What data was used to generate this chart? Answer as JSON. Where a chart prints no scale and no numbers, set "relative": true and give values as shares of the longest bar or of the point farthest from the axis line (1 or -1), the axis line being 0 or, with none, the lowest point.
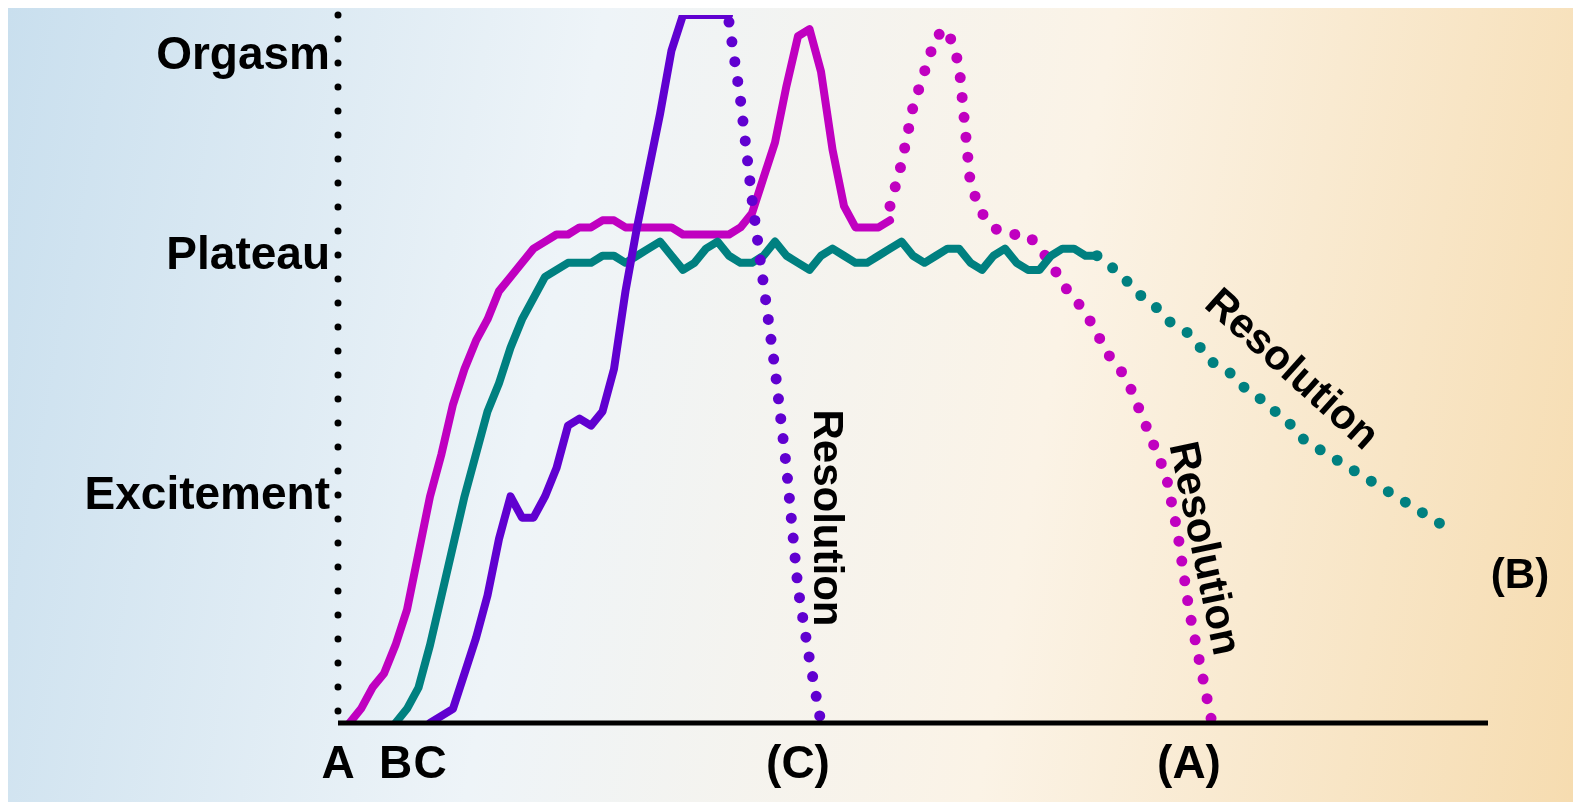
{
  "chart_data": {
    "type": "line",
    "relative": true,
    "grid": false,
    "legend": false,
    "marker": "none",
    "categories": [
      "A",
      null,
      null,
      null,
      null,
      "B",
      null,
      null,
      "C",
      null,
      null,
      null,
      null,
      null,
      null,
      null,
      null,
      null,
      null,
      null,
      null,
      null,
      null,
      null,
      null,
      null,
      null,
      null,
      null,
      null,
      null,
      null,
      null,
      null,
      null,
      null,
      null,
      null,
      null,
      null,
      "(C)",
      null,
      null,
      null,
      null,
      null,
      null,
      null,
      null,
      null,
      null,
      null,
      null,
      null,
      null,
      null,
      null,
      null,
      null,
      null,
      null,
      null,
      null,
      null,
      null,
      null,
      null,
      null,
      null,
      null,
      null,
      null,
      null,
      null,
      "(A)",
      null,
      null,
      null,
      null,
      null,
      null,
      null,
      null,
      null,
      null,
      null,
      null,
      null,
      null,
      null,
      null,
      null,
      null,
      null,
      null,
      null,
      null,
      null,
      null,
      null,
      null
    ],
    "series": [
      {
        "color": "#c000c0",
        "line_style": "solid",
        "values": [
          null,
          0,
          0.02,
          0.05,
          0.07,
          0.11,
          0.16,
          0.24,
          0.32,
          0.38,
          0.45,
          0.5,
          0.54,
          0.57,
          0.61,
          0.63,
          0.65,
          0.67,
          0.68,
          0.69,
          0.69,
          0.7,
          0.7,
          0.71,
          0.71,
          0.7,
          0.7,
          0.7,
          0.7,
          0.7,
          0.69,
          0.69,
          0.69,
          0.69,
          0.69,
          0.7,
          0.72,
          0.77,
          0.82,
          0.9,
          0.97,
          0.98,
          0.92,
          0.81,
          0.73,
          0.7,
          0.7,
          0.7,
          0.71,
          null,
          null,
          null,
          null,
          null,
          null,
          null,
          null,
          null,
          null,
          null,
          null,
          null,
          null,
          null,
          null,
          null,
          null,
          null,
          null,
          null,
          null,
          null,
          null,
          null,
          null,
          null,
          null,
          null,
          null,
          null,
          null,
          null,
          null,
          null,
          null,
          null,
          null,
          null,
          null,
          null,
          null,
          null,
          null,
          null,
          null,
          null,
          null,
          null,
          null,
          null,
          null
        ]
      },
      {
        "color": "#c000c0",
        "line_style": "dotted",
        "values": [
          null,
          null,
          null,
          null,
          null,
          null,
          null,
          null,
          null,
          null,
          null,
          null,
          null,
          null,
          null,
          null,
          null,
          null,
          null,
          null,
          null,
          null,
          null,
          null,
          null,
          null,
          null,
          null,
          null,
          null,
          null,
          null,
          null,
          null,
          null,
          null,
          null,
          null,
          null,
          null,
          null,
          null,
          null,
          null,
          null,
          null,
          null,
          null,
          0.73,
          0.79,
          0.87,
          0.92,
          0.97,
          0.98,
          0.93,
          0.76,
          0.72,
          0.7,
          0.69,
          0.69,
          0.69,
          0.67,
          0.65,
          0.62,
          0.6,
          0.58,
          0.55,
          0.52,
          0.5,
          0.47,
          0.43,
          0.39,
          0.35,
          0.27,
          0.16,
          0.08,
          0,
          null,
          null,
          null,
          null,
          null,
          null,
          null,
          null,
          null,
          null,
          null,
          null,
          null,
          null,
          null,
          null,
          null,
          null,
          null,
          null,
          null,
          null,
          null,
          null
        ]
      },
      {
        "color": "#008080",
        "line_style": "solid",
        "values": [
          null,
          null,
          null,
          null,
          null,
          0,
          0.02,
          0.05,
          0.11,
          0.18,
          0.25,
          0.32,
          0.38,
          0.44,
          0.48,
          0.53,
          0.57,
          0.6,
          0.63,
          0.64,
          0.65,
          0.65,
          0.65,
          0.66,
          0.66,
          0.65,
          0.66,
          0.67,
          0.68,
          0.66,
          0.64,
          0.65,
          0.67,
          0.68,
          0.66,
          0.65,
          0.65,
          0.66,
          0.68,
          0.66,
          0.65,
          0.64,
          0.66,
          0.67,
          0.66,
          0.65,
          0.65,
          0.66,
          0.67,
          0.68,
          0.66,
          0.65,
          0.66,
          0.67,
          0.67,
          0.65,
          0.64,
          0.66,
          0.67,
          0.65,
          0.64,
          0.64,
          0.66,
          0.67,
          0.67,
          0.66,
          0.66,
          null,
          null,
          null,
          null,
          null,
          null,
          null,
          null,
          null,
          null,
          null,
          null,
          null,
          null,
          null,
          null,
          null,
          null,
          null,
          null,
          null,
          null,
          null,
          null,
          null,
          null,
          null,
          null,
          null,
          null,
          null,
          null,
          null,
          null
        ]
      },
      {
        "color": "#008080",
        "line_style": "dotted",
        "values": [
          null,
          null,
          null,
          null,
          null,
          null,
          null,
          null,
          null,
          null,
          null,
          null,
          null,
          null,
          null,
          null,
          null,
          null,
          null,
          null,
          null,
          null,
          null,
          null,
          null,
          null,
          null,
          null,
          null,
          null,
          null,
          null,
          null,
          null,
          null,
          null,
          null,
          null,
          null,
          null,
          null,
          null,
          null,
          null,
          null,
          null,
          null,
          null,
          null,
          null,
          null,
          null,
          null,
          null,
          null,
          null,
          null,
          null,
          null,
          null,
          null,
          null,
          null,
          null,
          null,
          null,
          0.66,
          0.65,
          0.63,
          0.62,
          0.6,
          0.59,
          0.57,
          0.56,
          0.55,
          0.53,
          0.51,
          0.5,
          0.49,
          0.47,
          0.46,
          0.45,
          0.43,
          0.42,
          0.4,
          0.39,
          0.38,
          0.37,
          0.36,
          0.35,
          0.34,
          0.33,
          0.32,
          0.31,
          0.3,
          0.29,
          0.28,
          0.27,
          null,
          null,
          null
        ]
      },
      {
        "color": "#6000d0",
        "line_style": "solid",
        "values": [
          null,
          null,
          null,
          null,
          null,
          null,
          null,
          null,
          0,
          0.01,
          0.02,
          0.07,
          0.12,
          0.18,
          0.26,
          0.32,
          0.29,
          0.29,
          0.32,
          0.36,
          0.42,
          0.43,
          0.42,
          0.44,
          0.5,
          0.61,
          0.7,
          0.78,
          0.86,
          0.95,
          1,
          1,
          1,
          1,
          1,
          null,
          null,
          null,
          null,
          null,
          null,
          null,
          null,
          null,
          null,
          null,
          null,
          null,
          null,
          null,
          null,
          null,
          null,
          null,
          null,
          null,
          null,
          null,
          null,
          null,
          null,
          null,
          null,
          null,
          null,
          null,
          null,
          null,
          null,
          null,
          null,
          null,
          null,
          null,
          null,
          null,
          null,
          null,
          null,
          null,
          null,
          null,
          null,
          null,
          null,
          null,
          null,
          null,
          null,
          null,
          null,
          null,
          null,
          null,
          null,
          null,
          null,
          null,
          null,
          null,
          null
        ]
      },
      {
        "color": "#6000d0",
        "line_style": "dotted",
        "values": [
          null,
          null,
          null,
          null,
          null,
          null,
          null,
          null,
          null,
          null,
          null,
          null,
          null,
          null,
          null,
          null,
          null,
          null,
          null,
          null,
          null,
          null,
          null,
          null,
          null,
          null,
          null,
          null,
          null,
          null,
          null,
          null,
          null,
          null,
          0.99,
          0.88,
          0.74,
          0.62,
          0.5,
          0.36,
          0.19,
          0.09,
          0,
          null,
          null,
          null,
          null,
          null,
          null,
          null,
          null,
          null,
          null,
          null,
          null,
          null,
          null,
          null,
          null,
          null,
          null,
          null,
          null,
          null,
          null,
          null,
          null,
          null,
          null,
          null,
          null,
          null,
          null,
          null,
          null,
          null,
          null,
          null,
          null,
          null,
          null,
          null,
          null,
          null,
          null,
          null,
          null,
          null,
          null,
          null,
          null,
          null,
          null,
          null,
          null,
          null,
          null,
          null,
          null,
          null,
          null
        ]
      }
    ],
    "annotations": [
      "Orgasm",
      "Plateau",
      "Excitement",
      "Resolution",
      "Resolution",
      "Resolution",
      "(B)"
    ]
  }
}
